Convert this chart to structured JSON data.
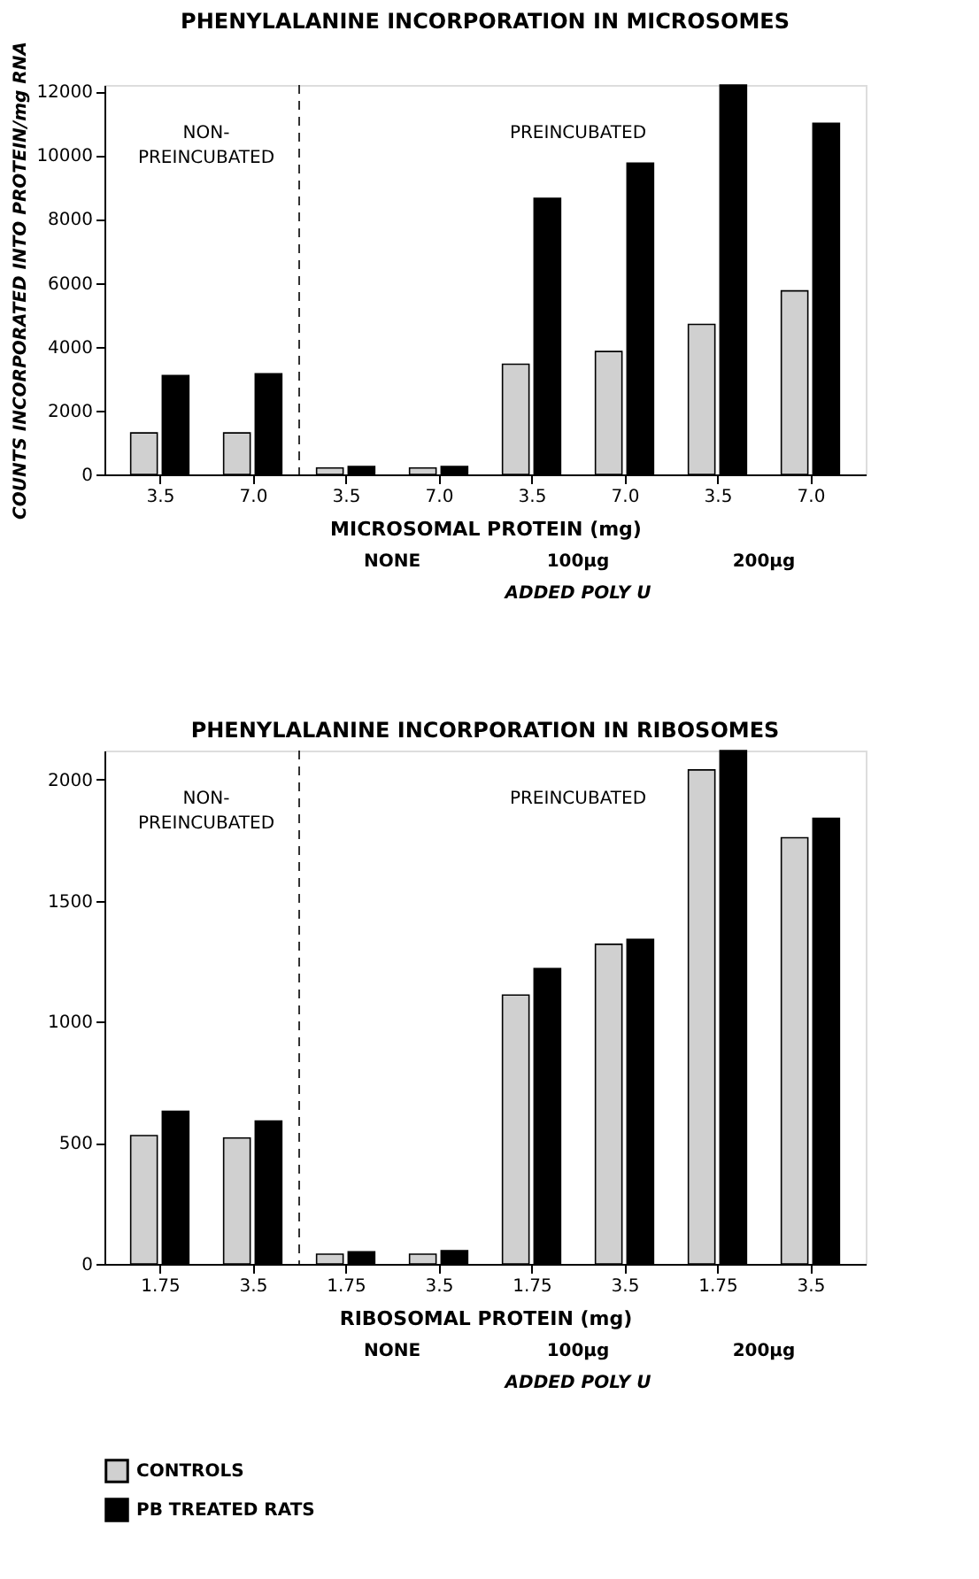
{
  "chart_data": [
    {
      "type": "bar",
      "title": "PHENYLALANINE INCORPORATION IN MICROSOMES",
      "xlabel": "MICROSOMAL PROTEIN (mg)",
      "ylabel": "COUNTS INCORPORATED INTO PROTEIN/mg RNA",
      "categories": [
        "3.5",
        "7.0",
        "3.5",
        "7.0",
        "3.5",
        "7.0",
        "3.5",
        "7.0"
      ],
      "series": [
        {
          "color": "#d0d0d0",
          "values": [
            1300,
            1300,
            200,
            200,
            3450,
            3850,
            4700,
            5750
          ]
        },
        {
          "color": "#000000",
          "values": [
            3100,
            3150,
            250,
            250,
            8650,
            9750,
            12200,
            11000
          ]
        }
      ],
      "ylim": [
        0,
        12200
      ],
      "yticks": [
        0,
        2000,
        4000,
        6000,
        8000,
        10000,
        12000
      ],
      "grid": false,
      "annotations": [
        "NON-PREINCUBATED",
        "PREINCUBATED",
        "NONE",
        "100µg",
        "200µg",
        "ADDED POLY U"
      ]
    },
    {
      "type": "bar",
      "title": "PHENYLALANINE INCORPORATION IN RIBOSOMES",
      "xlabel": "RIBOSOMAL PROTEIN (mg)",
      "categories": [
        "1.75",
        "3.5",
        "1.75",
        "3.5",
        "1.75",
        "3.5",
        "1.75",
        "3.5"
      ],
      "series": [
        {
          "name": "CONTROLS",
          "color": "#d0d0d0",
          "values": [
            530,
            520,
            40,
            40,
            1110,
            1320,
            2040,
            1760
          ]
        },
        {
          "name": "PB TREATED RATS",
          "color": "#000000",
          "values": [
            630,
            590,
            50,
            55,
            1220,
            1340,
            2120,
            1840
          ]
        }
      ],
      "ylim": [
        0,
        2120
      ],
      "yticks": [
        0,
        500,
        1000,
        1500,
        2000
      ],
      "grid": false,
      "legend": "bottom left",
      "annotations": [
        "NON-PREINCUBATED",
        "PREINCUBATED",
        "NONE",
        "100µg",
        "200µg",
        "ADDED POLY U"
      ]
    }
  ]
}
